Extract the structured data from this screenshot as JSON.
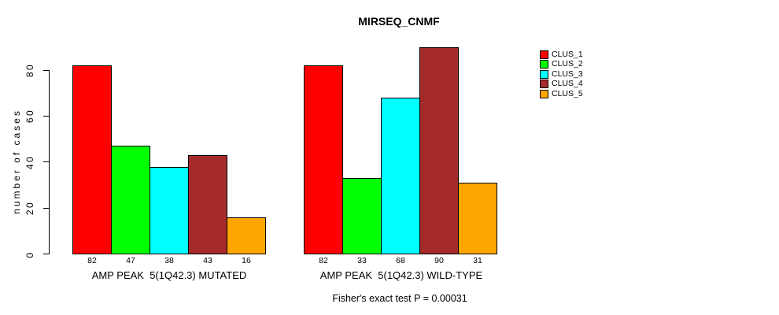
{
  "figure": {
    "title": "MIRSEQ_CNMF",
    "caption": "Fisher's exact test P = 0.00031"
  },
  "chart_data": {
    "type": "bar",
    "title": "MIRSEQ_CNMF",
    "xlabel": "",
    "ylabel": "number of cases",
    "ylim": [
      0,
      90
    ],
    "yticks": [
      0,
      20,
      40,
      60,
      80
    ],
    "grid": false,
    "legend_position": "right-outside",
    "value_labels_shown": true,
    "categories": [
      "AMP PEAK  5(1Q42.3) MUTATED",
      "AMP PEAK  5(1Q42.3) WILD-TYPE"
    ],
    "series": [
      {
        "name": "CLUS_1",
        "color": "#FF0000",
        "values": [
          82,
          82
        ]
      },
      {
        "name": "CLUS_2",
        "color": "#00FF00",
        "values": [
          47,
          33
        ]
      },
      {
        "name": "CLUS_3",
        "color": "#00FFFF",
        "values": [
          38,
          68
        ]
      },
      {
        "name": "CLUS_4",
        "color": "#A52A2A",
        "values": [
          43,
          90
        ]
      },
      {
        "name": "CLUS_5",
        "color": "#FFA500",
        "values": [
          16,
          31
        ]
      }
    ],
    "annotation": "Fisher's exact test P = 0.00031"
  }
}
